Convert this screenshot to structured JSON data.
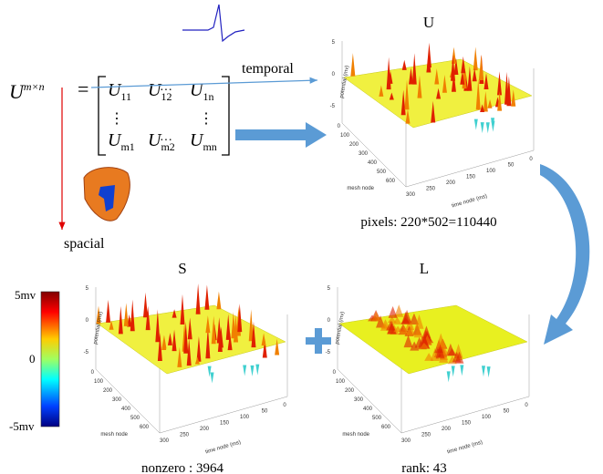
{
  "matrix": {
    "symbol": "U",
    "superscript": "m×n",
    "equals": "=",
    "base": "U",
    "subscripts": [
      [
        "11",
        "12",
        "1n"
      ],
      [
        "m1",
        "m2",
        "mn"
      ]
    ],
    "hdots": "···",
    "vdots": "⋮"
  },
  "axis_labels": {
    "temporal": "temporal",
    "spacial": "spacial"
  },
  "plots": [
    {
      "title": "U",
      "caption": "pixels: 220*502=110440"
    },
    {
      "title": "S",
      "caption": "nonzero : 3964"
    },
    {
      "title": "L",
      "caption": "rank: 43"
    }
  ],
  "plot_axes": {
    "z_label": "potential (mv)",
    "x_label": "time node (ms)",
    "y_label": "mesh node",
    "z_ticks": [
      "5",
      "0",
      "-5"
    ],
    "x_ticks": [
      "300",
      "250",
      "200",
      "150",
      "100",
      "50",
      "0"
    ],
    "y_ticks": [
      "0",
      "100",
      "200",
      "300",
      "400",
      "500",
      "600"
    ]
  },
  "colorbar": {
    "top": "5mv",
    "mid": "0",
    "bottom": "-5mv"
  }
}
